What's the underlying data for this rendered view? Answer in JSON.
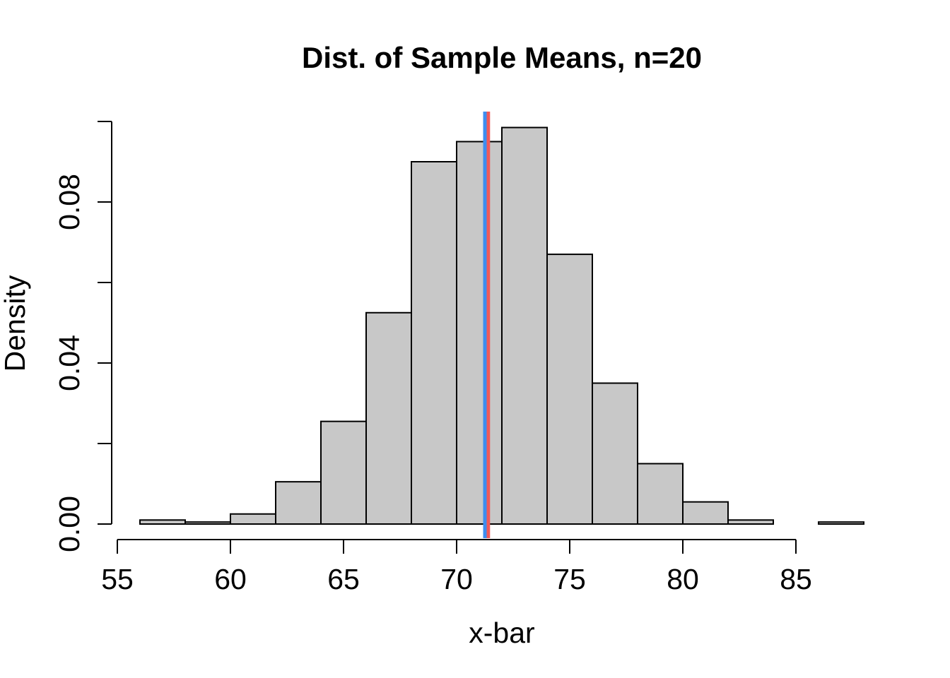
{
  "chart_data": {
    "type": "bar",
    "title": "Dist. of Sample Means, n=20",
    "xlabel": "x-bar",
    "ylabel": "Density",
    "xlim": [
      56,
      88
    ],
    "ylim": [
      0,
      0.1
    ],
    "bin_width": 2,
    "bins": [
      {
        "x0": 56,
        "x1": 58,
        "density": 0.001
      },
      {
        "x0": 58,
        "x1": 60,
        "density": 0.0005
      },
      {
        "x0": 60,
        "x1": 62,
        "density": 0.0025
      },
      {
        "x0": 62,
        "x1": 64,
        "density": 0.0105
      },
      {
        "x0": 64,
        "x1": 66,
        "density": 0.0255
      },
      {
        "x0": 66,
        "x1": 68,
        "density": 0.0525
      },
      {
        "x0": 68,
        "x1": 70,
        "density": 0.09
      },
      {
        "x0": 70,
        "x1": 72,
        "density": 0.095
      },
      {
        "x0": 72,
        "x1": 74,
        "density": 0.0985
      },
      {
        "x0": 74,
        "x1": 76,
        "density": 0.067
      },
      {
        "x0": 76,
        "x1": 78,
        "density": 0.035
      },
      {
        "x0": 78,
        "x1": 80,
        "density": 0.015
      },
      {
        "x0": 80,
        "x1": 82,
        "density": 0.0055
      },
      {
        "x0": 82,
        "x1": 84,
        "density": 0.001
      },
      {
        "x0": 84,
        "x1": 86,
        "density": 0
      },
      {
        "x0": 86,
        "x1": 88,
        "density": 0.0005
      }
    ],
    "x_ticks": [
      55,
      60,
      65,
      70,
      75,
      80,
      85
    ],
    "x_tick_labels": [
      "55",
      "60",
      "65",
      "70",
      "75",
      "80",
      "85"
    ],
    "y_ticks": [
      0,
      0.02,
      0.04,
      0.06,
      0.08,
      0.1
    ],
    "y_tick_labels": [
      "0.00",
      "",
      "0.04",
      "",
      "0.08",
      ""
    ],
    "vlines": [
      {
        "x": 71.4,
        "color": "#f05a5a"
      },
      {
        "x": 71.25,
        "color": "#3d8ef0"
      }
    ],
    "grid": false,
    "legend": "none"
  }
}
